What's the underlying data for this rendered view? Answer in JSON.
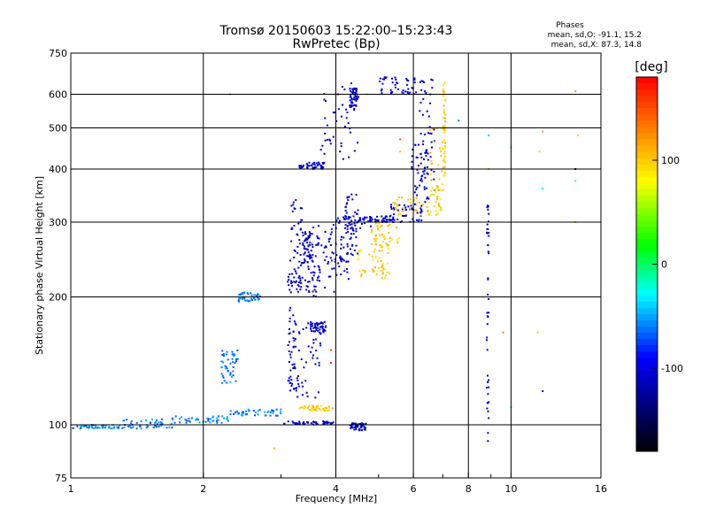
{
  "chart_data": {
    "type": "scatter",
    "title": "Tromsø 20150603 15:22:00–15:23:43",
    "subtitle": "RwPretec (Bp)",
    "xlabel": "Frequency [MHz]",
    "ylabel": "Stationary phase Virtual Height [km]",
    "x_scale": "log2",
    "y_scale": "log",
    "xlim": [
      1,
      16
    ],
    "ylim": [
      75,
      750
    ],
    "x_ticks": [
      1,
      2,
      4,
      6,
      8,
      10,
      16
    ],
    "x_minor_ticks": [
      3,
      5,
      7,
      9
    ],
    "y_ticks": [
      75,
      100,
      200,
      300,
      400,
      500,
      600,
      750
    ],
    "x_gridlines": [
      2,
      4,
      6,
      8,
      10
    ],
    "y_gridlines": [
      100,
      200,
      300,
      400,
      500,
      600
    ],
    "grid": true,
    "stats": {
      "heading": "Phases",
      "line_o": "mean, sd,O: -91.1, 15.2",
      "line_x": "mean, sd,X:  87.3, 14.8"
    },
    "colorbar": {
      "label": "[deg]",
      "min": -180,
      "max": 180,
      "ticks": [
        100,
        0,
        -100
      ],
      "placement": "right"
    },
    "series": [
      {
        "mode": "o",
        "phase": -110,
        "traces": [
          {
            "f0": 3.05,
            "f1": 3.95,
            "h0": 100,
            "h1": 102
          },
          {
            "f0": 3.1,
            "f1": 3.25,
            "h0": 120,
            "h1": 190
          },
          {
            "f0": 3.25,
            "f1": 3.7,
            "h0": 115,
            "h1": 180
          },
          {
            "f0": 3.5,
            "f1": 3.8,
            "h0": 165,
            "h1": 175
          },
          {
            "f0": 3.15,
            "f1": 3.35,
            "h0": 210,
            "h1": 340
          },
          {
            "f0": 3.35,
            "f1": 3.55,
            "h0": 240,
            "h1": 290
          },
          {
            "f0": 3.1,
            "f1": 3.7,
            "h0": 200,
            "h1": 230
          },
          {
            "f0": 3.5,
            "f1": 4.3,
            "h0": 205,
            "h1": 300
          },
          {
            "f0": 3.4,
            "f1": 4.3,
            "h0": 230,
            "h1": 280
          },
          {
            "f0": 4.2,
            "f1": 4.5,
            "h0": 250,
            "h1": 350
          },
          {
            "f0": 4.0,
            "f1": 4.8,
            "h0": 290,
            "h1": 310
          },
          {
            "f0": 4.7,
            "f1": 5.4,
            "h0": 300,
            "h1": 310
          },
          {
            "f0": 5.3,
            "f1": 6.3,
            "h0": 300,
            "h1": 330
          },
          {
            "f0": 3.3,
            "f1": 3.8,
            "h0": 400,
            "h1": 415
          },
          {
            "f0": 3.7,
            "f1": 4.5,
            "h0": 420,
            "h1": 640
          },
          {
            "f0": 4.3,
            "f1": 4.5,
            "h0": 560,
            "h1": 620
          },
          {
            "f0": 5.0,
            "f1": 6.1,
            "h0": 600,
            "h1": 660
          },
          {
            "f0": 6.2,
            "f1": 6.7,
            "h0": 330,
            "h1": 660
          },
          {
            "f0": 5.9,
            "f1": 6.5,
            "h0": 320,
            "h1": 460
          },
          {
            "f0": 4.3,
            "f1": 4.7,
            "h0": 97,
            "h1": 101
          },
          {
            "f0": 8.8,
            "f1": 8.9,
            "h0": 90,
            "h1": 340
          }
        ]
      },
      {
        "mode": "x",
        "phase": 100,
        "traces": [
          {
            "f0": 3.3,
            "f1": 3.95,
            "h0": 108,
            "h1": 111
          },
          {
            "f0": 4.5,
            "f1": 5.3,
            "h0": 220,
            "h1": 260
          },
          {
            "f0": 4.8,
            "f1": 5.6,
            "h0": 260,
            "h1": 300
          },
          {
            "f0": 5.4,
            "f1": 7.0,
            "h0": 310,
            "h1": 345
          },
          {
            "f0": 6.5,
            "f1": 7.1,
            "h0": 320,
            "h1": 500
          },
          {
            "f0": 7.0,
            "f1": 7.1,
            "h0": 380,
            "h1": 640
          }
        ]
      },
      {
        "mode": "e",
        "phase": -60,
        "traces": [
          {
            "f0": 1.0,
            "f1": 1.3,
            "h0": 98,
            "h1": 100
          },
          {
            "f0": 1.3,
            "f1": 1.7,
            "h0": 98,
            "h1": 103
          },
          {
            "f0": 1.7,
            "f1": 2.3,
            "h0": 101,
            "h1": 105
          },
          {
            "f0": 2.3,
            "f1": 3.0,
            "h0": 105,
            "h1": 109
          },
          {
            "f0": 2.2,
            "f1": 2.4,
            "h0": 125,
            "h1": 150
          },
          {
            "f0": 2.4,
            "f1": 2.7,
            "h0": 195,
            "h1": 205
          }
        ]
      }
    ],
    "scattered_points": [
      {
        "x": 8.9,
        "y": 480,
        "phase": -40
      },
      {
        "x": 8.9,
        "y": 400,
        "phase": 110
      },
      {
        "x": 9.6,
        "y": 165,
        "phase": 130
      },
      {
        "x": 10.0,
        "y": 450,
        "phase": -20
      },
      {
        "x": 10.0,
        "y": 110,
        "phase": -30
      },
      {
        "x": 11.5,
        "y": 165,
        "phase": 60
      },
      {
        "x": 11.8,
        "y": 490,
        "phase": 120
      },
      {
        "x": 11.8,
        "y": 360,
        "phase": -30
      },
      {
        "x": 11.8,
        "y": 120,
        "phase": -110
      },
      {
        "x": 11.6,
        "y": 440,
        "phase": 60
      },
      {
        "x": 14.0,
        "y": 610,
        "phase": 120
      },
      {
        "x": 14.0,
        "y": 400,
        "phase": -170
      },
      {
        "x": 14.0,
        "y": 375,
        "phase": -30
      },
      {
        "x": 14.0,
        "y": 300,
        "phase": 110
      },
      {
        "x": 14.2,
        "y": 480,
        "phase": 100
      },
      {
        "x": 2.9,
        "y": 88,
        "phase": 110
      },
      {
        "x": 5.6,
        "y": 470,
        "phase": 150
      },
      {
        "x": 5.6,
        "y": 440,
        "phase": 110
      },
      {
        "x": 3.9,
        "y": 150,
        "phase": 150
      },
      {
        "x": 3.9,
        "y": 140,
        "phase": 160
      },
      {
        "x": 2.3,
        "y": 600,
        "phase": -40
      },
      {
        "x": 7.6,
        "y": 520,
        "phase": -60
      },
      {
        "x": 4.7,
        "y": 600,
        "phase": 60
      }
    ]
  }
}
